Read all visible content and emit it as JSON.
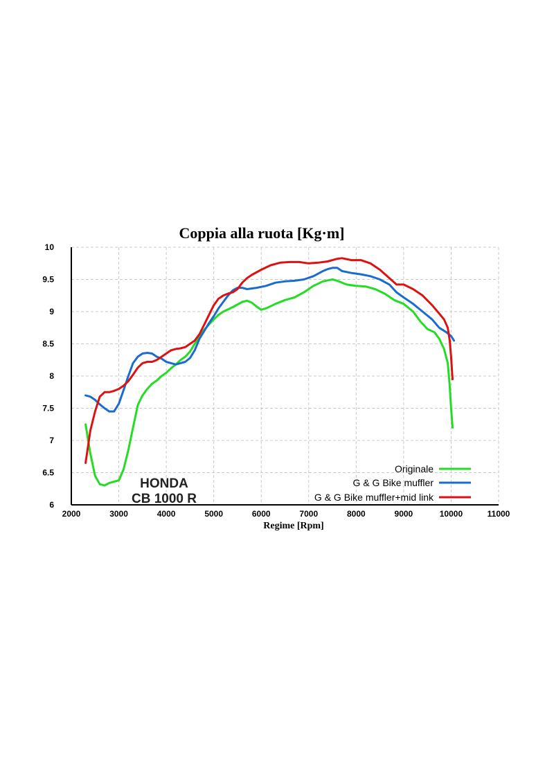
{
  "chart_data": {
    "type": "line",
    "title": "Coppia alla ruota [Kg·m]",
    "xlabel": "Regime [Rpm]",
    "ylabel": "",
    "xlim": [
      2000,
      11000
    ],
    "ylim": [
      6,
      10
    ],
    "xticks": [
      "2000",
      "3000",
      "4000",
      "5000",
      "6000",
      "7000",
      "8000",
      "9000",
      "10000",
      "11000"
    ],
    "yticks": [
      "6",
      "6.5",
      "7",
      "7.5",
      "8",
      "8.5",
      "9",
      "9.5",
      "10"
    ],
    "grid": true,
    "legend_position": "bottom-right",
    "annotation": [
      "HONDA",
      "CB 1000 R"
    ],
    "series": [
      {
        "name": "Originale",
        "color": "#22dd22",
        "points": [
          [
            2300,
            7.25
          ],
          [
            2400,
            6.8
          ],
          [
            2500,
            6.45
          ],
          [
            2600,
            6.32
          ],
          [
            2700,
            6.3
          ],
          [
            2800,
            6.34
          ],
          [
            2900,
            6.36
          ],
          [
            3000,
            6.38
          ],
          [
            3100,
            6.55
          ],
          [
            3200,
            6.85
          ],
          [
            3300,
            7.2
          ],
          [
            3400,
            7.55
          ],
          [
            3500,
            7.7
          ],
          [
            3600,
            7.8
          ],
          [
            3700,
            7.88
          ],
          [
            3800,
            7.93
          ],
          [
            3900,
            8.0
          ],
          [
            4000,
            8.05
          ],
          [
            4100,
            8.12
          ],
          [
            4200,
            8.18
          ],
          [
            4300,
            8.25
          ],
          [
            4400,
            8.3
          ],
          [
            4500,
            8.38
          ],
          [
            4600,
            8.5
          ],
          [
            4700,
            8.62
          ],
          [
            4800,
            8.72
          ],
          [
            4900,
            8.8
          ],
          [
            5000,
            8.88
          ],
          [
            5100,
            8.95
          ],
          [
            5200,
            9.0
          ],
          [
            5400,
            9.07
          ],
          [
            5600,
            9.15
          ],
          [
            5700,
            9.17
          ],
          [
            5800,
            9.14
          ],
          [
            5900,
            9.08
          ],
          [
            6000,
            9.03
          ],
          [
            6100,
            9.05
          ],
          [
            6300,
            9.12
          ],
          [
            6500,
            9.18
          ],
          [
            6700,
            9.22
          ],
          [
            6900,
            9.3
          ],
          [
            7100,
            9.4
          ],
          [
            7300,
            9.47
          ],
          [
            7500,
            9.5
          ],
          [
            7600,
            9.48
          ],
          [
            7800,
            9.42
          ],
          [
            8000,
            9.4
          ],
          [
            8200,
            9.39
          ],
          [
            8400,
            9.35
          ],
          [
            8600,
            9.28
          ],
          [
            8800,
            9.18
          ],
          [
            9000,
            9.12
          ],
          [
            9200,
            9.0
          ],
          [
            9350,
            8.85
          ],
          [
            9500,
            8.73
          ],
          [
            9650,
            8.68
          ],
          [
            9750,
            8.58
          ],
          [
            9850,
            8.42
          ],
          [
            9930,
            8.2
          ],
          [
            9970,
            7.85
          ],
          [
            10000,
            7.5
          ],
          [
            10030,
            7.2
          ]
        ]
      },
      {
        "name": "G & G Bike muffler",
        "color": "#1a6bd0",
        "points": [
          [
            2300,
            7.7
          ],
          [
            2400,
            7.68
          ],
          [
            2500,
            7.63
          ],
          [
            2600,
            7.56
          ],
          [
            2700,
            7.5
          ],
          [
            2800,
            7.45
          ],
          [
            2900,
            7.45
          ],
          [
            3000,
            7.57
          ],
          [
            3100,
            7.78
          ],
          [
            3200,
            8.0
          ],
          [
            3300,
            8.2
          ],
          [
            3400,
            8.3
          ],
          [
            3500,
            8.35
          ],
          [
            3600,
            8.36
          ],
          [
            3700,
            8.35
          ],
          [
            3800,
            8.3
          ],
          [
            3900,
            8.27
          ],
          [
            4000,
            8.22
          ],
          [
            4100,
            8.2
          ],
          [
            4200,
            8.18
          ],
          [
            4300,
            8.2
          ],
          [
            4400,
            8.22
          ],
          [
            4500,
            8.28
          ],
          [
            4600,
            8.4
          ],
          [
            4700,
            8.58
          ],
          [
            4800,
            8.7
          ],
          [
            4900,
            8.82
          ],
          [
            5000,
            8.93
          ],
          [
            5100,
            9.05
          ],
          [
            5200,
            9.15
          ],
          [
            5300,
            9.25
          ],
          [
            5400,
            9.33
          ],
          [
            5500,
            9.37
          ],
          [
            5600,
            9.37
          ],
          [
            5700,
            9.35
          ],
          [
            5900,
            9.37
          ],
          [
            6100,
            9.4
          ],
          [
            6300,
            9.45
          ],
          [
            6500,
            9.47
          ],
          [
            6700,
            9.48
          ],
          [
            6900,
            9.5
          ],
          [
            7100,
            9.55
          ],
          [
            7300,
            9.63
          ],
          [
            7400,
            9.66
          ],
          [
            7500,
            9.68
          ],
          [
            7600,
            9.68
          ],
          [
            7700,
            9.63
          ],
          [
            7900,
            9.6
          ],
          [
            8100,
            9.58
          ],
          [
            8300,
            9.55
          ],
          [
            8500,
            9.5
          ],
          [
            8700,
            9.42
          ],
          [
            8850,
            9.3
          ],
          [
            9000,
            9.22
          ],
          [
            9200,
            9.12
          ],
          [
            9400,
            9.0
          ],
          [
            9600,
            8.88
          ],
          [
            9750,
            8.75
          ],
          [
            9900,
            8.68
          ],
          [
            10000,
            8.62
          ],
          [
            10060,
            8.55
          ]
        ]
      },
      {
        "name": "G & G Bike muffler+mid link",
        "color": "#dd1111",
        "points": [
          [
            2300,
            6.65
          ],
          [
            2400,
            7.15
          ],
          [
            2500,
            7.45
          ],
          [
            2600,
            7.68
          ],
          [
            2700,
            7.75
          ],
          [
            2800,
            7.75
          ],
          [
            2900,
            7.77
          ],
          [
            3000,
            7.8
          ],
          [
            3100,
            7.85
          ],
          [
            3200,
            7.92
          ],
          [
            3300,
            8.02
          ],
          [
            3400,
            8.13
          ],
          [
            3500,
            8.2
          ],
          [
            3600,
            8.22
          ],
          [
            3700,
            8.22
          ],
          [
            3800,
            8.25
          ],
          [
            3900,
            8.3
          ],
          [
            4000,
            8.35
          ],
          [
            4100,
            8.4
          ],
          [
            4200,
            8.42
          ],
          [
            4300,
            8.43
          ],
          [
            4400,
            8.45
          ],
          [
            4500,
            8.5
          ],
          [
            4600,
            8.55
          ],
          [
            4700,
            8.65
          ],
          [
            4800,
            8.8
          ],
          [
            4900,
            8.95
          ],
          [
            5000,
            9.1
          ],
          [
            5100,
            9.2
          ],
          [
            5200,
            9.25
          ],
          [
            5300,
            9.28
          ],
          [
            5400,
            9.3
          ],
          [
            5500,
            9.35
          ],
          [
            5600,
            9.45
          ],
          [
            5700,
            9.52
          ],
          [
            5800,
            9.57
          ],
          [
            6000,
            9.65
          ],
          [
            6200,
            9.72
          ],
          [
            6400,
            9.76
          ],
          [
            6600,
            9.77
          ],
          [
            6800,
            9.77
          ],
          [
            7000,
            9.75
          ],
          [
            7200,
            9.76
          ],
          [
            7400,
            9.78
          ],
          [
            7600,
            9.82
          ],
          [
            7700,
            9.83
          ],
          [
            7900,
            9.8
          ],
          [
            8100,
            9.8
          ],
          [
            8300,
            9.75
          ],
          [
            8500,
            9.65
          ],
          [
            8700,
            9.52
          ],
          [
            8850,
            9.42
          ],
          [
            9000,
            9.42
          ],
          [
            9200,
            9.35
          ],
          [
            9400,
            9.25
          ],
          [
            9600,
            9.1
          ],
          [
            9750,
            8.97
          ],
          [
            9850,
            8.88
          ],
          [
            9930,
            8.75
          ],
          [
            9970,
            8.55
          ],
          [
            10000,
            8.3
          ],
          [
            10030,
            7.95
          ]
        ]
      }
    ]
  }
}
